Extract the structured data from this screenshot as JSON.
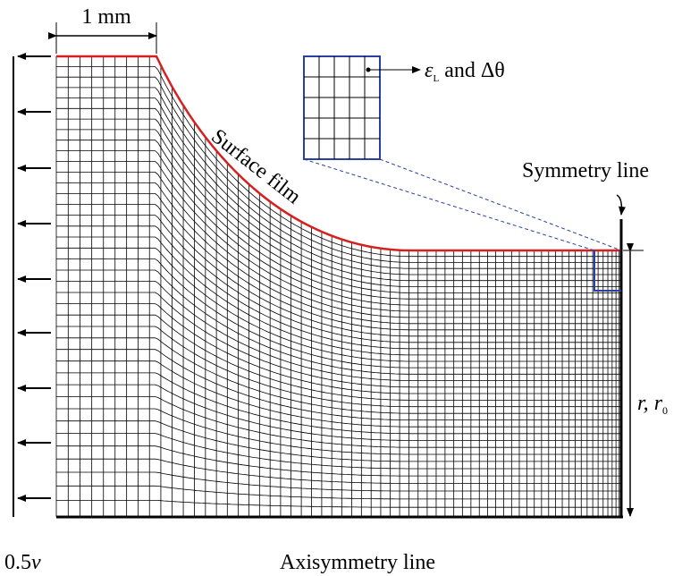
{
  "dimension_label": "1 mm",
  "inset_label": {
    "symbol": "ε",
    "subscript": "L",
    "text": "and Δθ"
  },
  "surface_label": "Surface film",
  "symmetry_label": "Symmetry line",
  "radius_label": {
    "r": "r,",
    "r0": "r",
    "subscript": "0"
  },
  "velocity_label": {
    "factor": "0.5",
    "symbol": "v"
  },
  "axis_label": "Axisymmetry line"
}
